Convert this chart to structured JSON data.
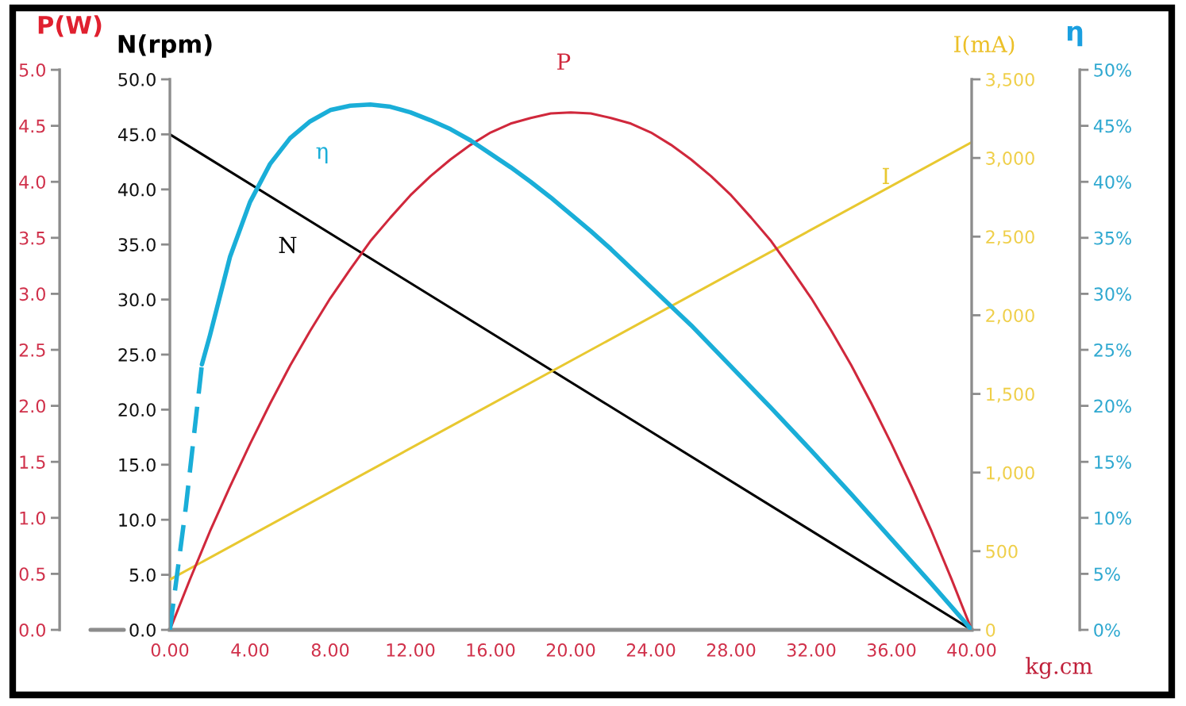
{
  "chart_data": [
    {
      "type": "line",
      "xlabel": "kg.cm",
      "ylabel": "N(rpm)",
      "y2label": "I(mA)",
      "xlim": [
        0,
        40
      ],
      "xticks": [
        {
          "value": 0,
          "label": "0.00"
        },
        {
          "value": 4,
          "label": "4.00"
        },
        {
          "value": 8,
          "label": "8.00"
        },
        {
          "value": 12,
          "label": "12.00"
        },
        {
          "value": 16,
          "label": "16.00"
        },
        {
          "value": 20,
          "label": "20.00"
        },
        {
          "value": 24,
          "label": "24.00"
        },
        {
          "value": 28,
          "label": "28.00"
        },
        {
          "value": 32,
          "label": "32.00"
        },
        {
          "value": 36,
          "label": "36.00"
        },
        {
          "value": 40,
          "label": "40.00"
        }
      ],
      "ylim": [
        0,
        50
      ],
      "yticks": [
        {
          "value": 0,
          "label": "0.0"
        },
        {
          "value": 5,
          "label": "5.0"
        },
        {
          "value": 10,
          "label": "10.0"
        },
        {
          "value": 15,
          "label": "15.0"
        },
        {
          "value": 20,
          "label": "20.0"
        },
        {
          "value": 25,
          "label": "25.0"
        },
        {
          "value": 30,
          "label": "30.0"
        },
        {
          "value": 35,
          "label": "35.0"
        },
        {
          "value": 40,
          "label": "40.0"
        },
        {
          "value": 45,
          "label": "45.0"
        },
        {
          "value": 50,
          "label": "50.0"
        }
      ],
      "y2lim": [
        0,
        3500
      ],
      "y2ticks": [
        0,
        500,
        {
          "value": 1000,
          "label": "1,000"
        },
        {
          "value": 1500,
          "label": "1,500"
        },
        {
          "value": 2000,
          "label": "2,000"
        },
        {
          "value": 2500,
          "label": "2,500"
        },
        {
          "value": 3000,
          "label": "3,000"
        },
        {
          "value": 3500,
          "label": "3,500"
        }
      ],
      "series": [
        {
          "name": "N",
          "color": "#000000",
          "x": [
            0,
            40
          ],
          "values": [
            45,
            0
          ]
        },
        {
          "name": "I",
          "color": "#e8c830",
          "axis": "y2",
          "x": [
            0,
            40
          ],
          "values": [
            320,
            3100
          ]
        }
      ]
    },
    {
      "type": "line",
      "ylabel": "P(W)",
      "y2label": "η",
      "tick_labels": "y",
      "xlim": [
        0,
        40
      ],
      "ylim": [
        0,
        5
      ],
      "yticks": [
        {
          "value": 0,
          "label": "0.0"
        },
        {
          "value": 0.5,
          "label": "0.5"
        },
        {
          "value": 1,
          "label": "1.0"
        },
        {
          "value": 1.5,
          "label": "1.5"
        },
        {
          "value": 2,
          "label": "2.0"
        },
        {
          "value": 2.5,
          "label": "2.5"
        },
        {
          "value": 3,
          "label": "3.0"
        },
        {
          "value": 3.5,
          "label": "3.5"
        },
        {
          "value": 4,
          "label": "4.0"
        },
        {
          "value": 4.5,
          "label": "4.5"
        },
        {
          "value": 5,
          "label": "5.0"
        }
      ],
      "y2lim": [
        0,
        50
      ],
      "y2ticks": [
        {
          "value": 0,
          "label": "0%"
        },
        {
          "value": 5,
          "label": "5%"
        },
        {
          "value": 10,
          "label": "10%"
        },
        {
          "value": 15,
          "label": "15%"
        },
        {
          "value": 20,
          "label": "20%"
        },
        {
          "value": 25,
          "label": "25%"
        },
        {
          "value": 30,
          "label": "30%"
        },
        {
          "value": 35,
          "label": "35%"
        },
        {
          "value": 40,
          "label": "40%"
        },
        {
          "value": 45,
          "label": "45%"
        },
        {
          "value": 50,
          "label": "50%"
        }
      ],
      "series": [
        {
          "name": "P",
          "color": "#d0283c",
          "x": [
            0,
            1,
            2,
            3,
            4,
            5,
            6,
            7,
            8,
            9,
            10,
            11,
            12,
            13,
            14,
            15,
            16,
            17,
            18,
            19,
            20,
            21,
            22,
            23,
            24,
            25,
            26,
            27,
            28,
            29,
            30,
            31,
            32,
            33,
            34,
            35,
            36,
            37,
            38,
            39,
            40
          ],
          "values": [
            0,
            0.45,
            0.88,
            1.28,
            1.66,
            2.02,
            2.36,
            2.67,
            2.96,
            3.22,
            3.47,
            3.68,
            3.88,
            4.05,
            4.2,
            4.33,
            4.44,
            4.52,
            4.57,
            4.61,
            4.62,
            4.61,
            4.57,
            4.52,
            4.44,
            4.33,
            4.2,
            4.05,
            3.88,
            3.68,
            3.47,
            3.22,
            2.96,
            2.67,
            2.36,
            2.02,
            1.66,
            1.28,
            0.88,
            0.45,
            0
          ]
        },
        {
          "name": "η",
          "color": "#1aaed8",
          "axis": "y2",
          "x": [
            1.6,
            2,
            3,
            4,
            5,
            6,
            7,
            8,
            9,
            10,
            11,
            12,
            13,
            14,
            15,
            16,
            17,
            18,
            19,
            20,
            21,
            22,
            23,
            24,
            26,
            28,
            30,
            32,
            34,
            36,
            38,
            40
          ],
          "values": [
            23.7,
            26.3,
            33.3,
            38.2,
            41.6,
            43.9,
            45.4,
            46.4,
            46.8,
            46.9,
            46.7,
            46.2,
            45.5,
            44.7,
            43.7,
            42.5,
            41.3,
            40.0,
            38.6,
            37.1,
            35.6,
            34.0,
            32.3,
            30.6,
            27.2,
            23.5,
            19.8,
            16.0,
            12.1,
            8.1,
            4.1,
            0
          ]
        },
        {
          "color": "#1aaed8",
          "axis": "y2",
          "line_style": "dashed",
          "x": [
            0,
            0.8,
            1.6
          ],
          "values": [
            0,
            11,
            23.7
          ]
        }
      ]
    }
  ]
}
